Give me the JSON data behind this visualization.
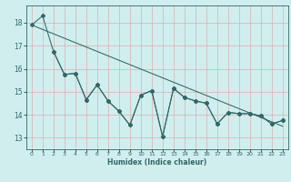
{
  "xlabel": "Humidex (Indice chaleur)",
  "bg_color": "#d0eeee",
  "grid_color": "#d8b0b0",
  "line_color": "#336666",
  "xmin": -0.5,
  "xmax": 23.5,
  "ymin": 12.5,
  "ymax": 18.75,
  "yticks": [
    13,
    14,
    15,
    16,
    17,
    18
  ],
  "xticks": [
    0,
    1,
    2,
    3,
    4,
    5,
    6,
    7,
    8,
    9,
    10,
    11,
    12,
    13,
    14,
    15,
    16,
    17,
    18,
    19,
    20,
    21,
    22,
    23
  ],
  "line1_x": [
    0,
    1,
    2,
    3,
    4,
    5,
    6,
    7,
    8,
    9,
    10,
    11,
    12,
    13,
    14,
    15,
    16,
    17,
    18,
    19,
    20,
    21,
    22,
    23
  ],
  "line1_y": [
    17.9,
    18.3,
    16.75,
    15.75,
    15.8,
    14.65,
    15.3,
    14.6,
    14.15,
    13.55,
    14.85,
    15.05,
    13.05,
    15.15,
    14.75,
    14.6,
    14.5,
    13.6,
    14.1,
    14.05,
    14.05,
    13.95,
    13.6,
    13.75
  ],
  "line2_x": [
    2,
    3,
    4,
    5,
    6,
    7,
    8,
    9,
    10,
    11,
    12,
    13,
    14,
    15,
    16,
    17,
    18,
    19,
    20,
    21,
    22,
    23
  ],
  "line2_y": [
    16.75,
    15.75,
    15.8,
    14.65,
    15.3,
    14.6,
    14.15,
    13.55,
    14.85,
    15.05,
    13.05,
    15.15,
    14.75,
    14.6,
    14.5,
    13.6,
    14.1,
    14.05,
    14.05,
    13.95,
    13.6,
    13.75
  ],
  "trend_x": [
    0,
    23
  ],
  "trend_y": [
    17.9,
    13.5
  ],
  "line3_x": [
    2,
    3,
    4,
    5,
    6,
    7,
    8,
    9,
    10,
    11,
    12,
    13,
    14,
    15,
    16,
    17,
    18,
    19,
    20,
    21,
    22,
    23
  ],
  "line3_y": [
    16.8,
    15.75,
    15.85,
    14.65,
    15.3,
    14.6,
    14.15,
    13.55,
    14.85,
    15.05,
    13.05,
    15.15,
    14.75,
    14.6,
    14.5,
    13.6,
    14.1,
    14.05,
    14.05,
    13.95,
    13.6,
    13.75
  ]
}
